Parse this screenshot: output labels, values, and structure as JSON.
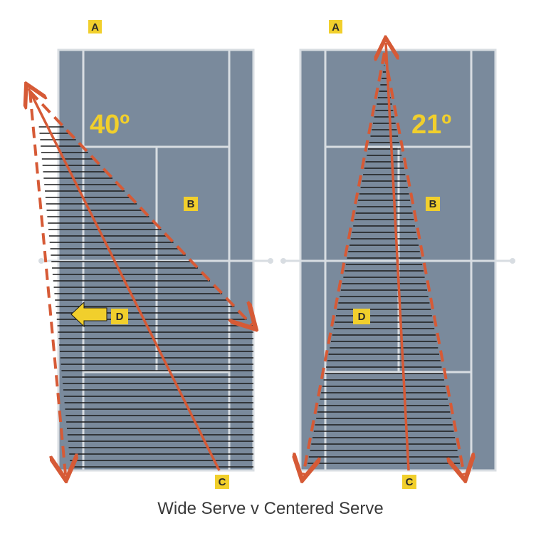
{
  "caption": "Wide Serve v Centered Serve",
  "colors": {
    "court": "#7a8a9c",
    "court_lines": "#d8dde2",
    "arrow": "#d65a36",
    "hatch": "#1a1a1a",
    "tag_fill": "#f1cf2c",
    "angle_text": "#f1cf2c"
  },
  "panels": [
    {
      "id": "wide",
      "angle_label": "40º",
      "labels": {
        "a": "A",
        "b": "B",
        "c": "C",
        "d": "D"
      },
      "side_arrow_icon": "yellow-left-arrow-icon"
    },
    {
      "id": "centered",
      "angle_label": "21º",
      "labels": {
        "a": "A",
        "b": "B",
        "c": "C",
        "d": "D"
      }
    }
  ]
}
